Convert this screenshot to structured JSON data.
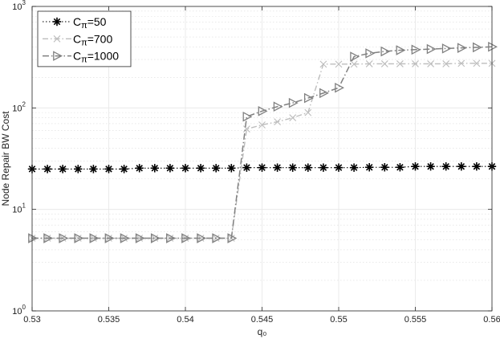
{
  "chart_data": {
    "type": "line",
    "xlabel": "q₀",
    "ylabel": "Node Repair BW Cost",
    "xlim": [
      0.53,
      0.56
    ],
    "ylim": [
      1,
      1000
    ],
    "yscale": "log",
    "grid": true,
    "legend_position": "top-left",
    "x_ticks": [
      "0.53",
      "0.535",
      "0.54",
      "0.545",
      "0.55",
      "0.555",
      "0.56"
    ],
    "y_ticks": [
      {
        "base": "10",
        "exp": "0"
      },
      {
        "base": "10",
        "exp": "1"
      },
      {
        "base": "10",
        "exp": "2"
      },
      {
        "base": "10",
        "exp": "3"
      }
    ],
    "x": [
      0.53,
      0.531,
      0.532,
      0.533,
      0.534,
      0.535,
      0.536,
      0.537,
      0.538,
      0.539,
      0.54,
      0.541,
      0.542,
      0.543,
      0.544,
      0.545,
      0.546,
      0.547,
      0.548,
      0.549,
      0.55,
      0.551,
      0.552,
      0.553,
      0.554,
      0.555,
      0.556,
      0.557,
      0.558,
      0.559,
      0.56
    ],
    "series": [
      {
        "name": "C_π=50",
        "label_main": "C",
        "label_sub": "π",
        "label_rest": "=50",
        "color": "#000000",
        "marker": "asterisk",
        "values": [
          25,
          25,
          25,
          25,
          25,
          25,
          25,
          25.5,
          25.5,
          25.5,
          25.5,
          25.5,
          25.5,
          25.5,
          25.8,
          25.8,
          25.8,
          25.8,
          25.8,
          25.8,
          25.8,
          25.8,
          26,
          26,
          26,
          26.5,
          26.5,
          26.5,
          26.5,
          26.5,
          26.5
        ]
      },
      {
        "name": "C_π=700",
        "label_main": "C",
        "label_sub": "π",
        "label_rest": "=700",
        "color": "#bdbdbd",
        "marker": "x",
        "values": [
          5.2,
          5.2,
          5.2,
          5.2,
          5.2,
          5.2,
          5.2,
          5.2,
          5.2,
          5.2,
          5.2,
          5.2,
          5.2,
          5.2,
          62,
          68,
          73,
          80,
          90,
          270,
          270,
          270,
          272,
          272,
          272,
          272,
          272,
          272,
          275,
          275,
          275
        ]
      },
      {
        "name": "C_π=1000",
        "label_main": "C",
        "label_sub": "π",
        "label_rest": "=1000",
        "color": "#808080",
        "marker": "triangle-right",
        "values": [
          5.2,
          5.2,
          5.2,
          5.2,
          5.2,
          5.2,
          5.2,
          5.2,
          5.2,
          5.2,
          5.2,
          5.2,
          5.2,
          5.2,
          82,
          93,
          103,
          112,
          125,
          140,
          158,
          320,
          345,
          360,
          370,
          375,
          380,
          385,
          390,
          395,
          400
        ]
      }
    ]
  }
}
